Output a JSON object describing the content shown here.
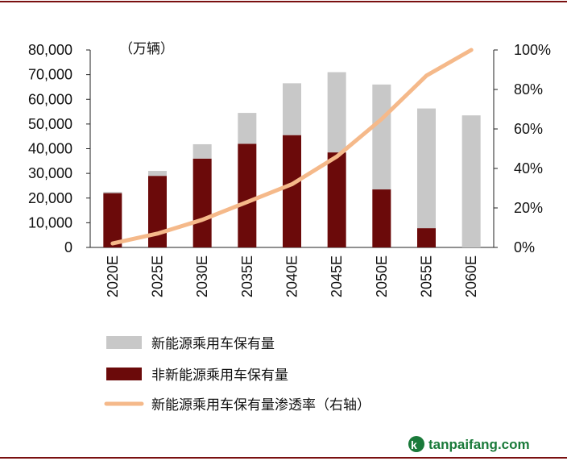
{
  "chart_data": {
    "type": "bar",
    "title": "",
    "ylabel": "（万辆）",
    "xlabel": "",
    "categories": [
      "2020E",
      "2025E",
      "2030E",
      "2035E",
      "2040E",
      "2045E",
      "2050E",
      "2055E",
      "2060E"
    ],
    "stacked": true,
    "ylim": [
      0,
      80000
    ],
    "y_ticks": [
      "0",
      "10,000",
      "20,000",
      "30,000",
      "40,000",
      "50,000",
      "60,000",
      "70,000",
      "80,000"
    ],
    "y2lim": [
      0,
      100
    ],
    "y2_ticks": [
      "0%",
      "20%",
      "40%",
      "60%",
      "80%",
      "100%"
    ],
    "series": [
      {
        "name": "非新能源乘用车保有量",
        "kind": "bar",
        "color": "#6b0a0a",
        "values": [
          22000,
          29000,
          36000,
          42000,
          45500,
          38500,
          23500,
          7800,
          0
        ]
      },
      {
        "name": "新能源乘用车保有量",
        "kind": "bar",
        "color": "#c8c8c8",
        "values": [
          500,
          2000,
          5800,
          12500,
          21000,
          32500,
          42500,
          48500,
          53500
        ]
      },
      {
        "name": "新能源乘用车保有量渗透率（右轴）",
        "kind": "line",
        "axis": "right",
        "color": "#f5b98a",
        "values": [
          2,
          7,
          14,
          23,
          32,
          46,
          65,
          87,
          100
        ]
      }
    ],
    "legend": [
      "新能源乘用车保有量",
      "非新能源乘用车保有量",
      "新能源乘用车保有量渗透率（右轴）"
    ],
    "legend_position": "bottom"
  },
  "watermark": {
    "text": "tanpaifang.com",
    "color": "#1a7a3a"
  }
}
